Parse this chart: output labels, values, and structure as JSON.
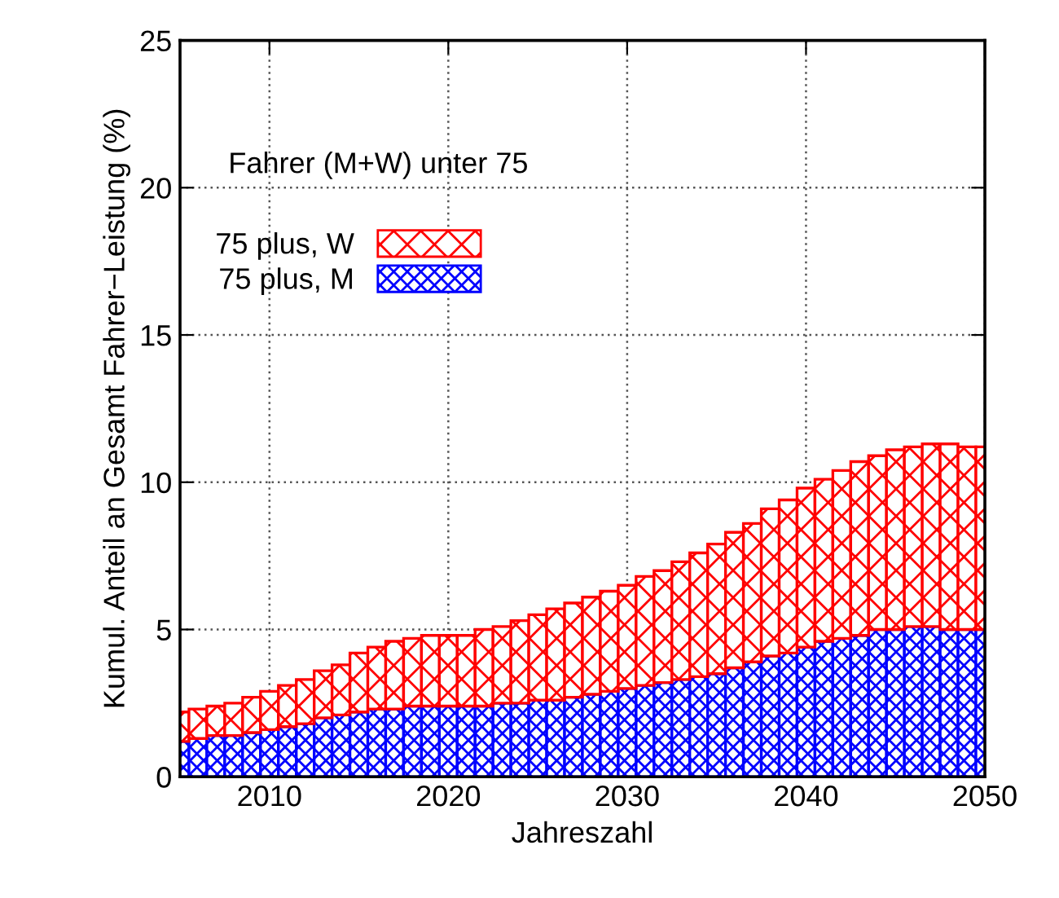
{
  "chart_data": {
    "type": "bar",
    "stacked": true,
    "xlabel": "Jahreszahl",
    "ylabel": "Kumul. Anteil an Gesamt Fahrer−Leistung (%)",
    "x": [
      2005,
      2006,
      2007,
      2008,
      2009,
      2010,
      2011,
      2012,
      2013,
      2014,
      2015,
      2016,
      2017,
      2018,
      2019,
      2020,
      2021,
      2022,
      2023,
      2024,
      2025,
      2026,
      2027,
      2028,
      2029,
      2030,
      2031,
      2032,
      2033,
      2034,
      2035,
      2036,
      2037,
      2038,
      2039,
      2040,
      2041,
      2042,
      2043,
      2044,
      2045,
      2046,
      2047,
      2048,
      2049,
      2050
    ],
    "series": [
      {
        "name": "75 plus, M",
        "color": "#0000ff",
        "values": [
          1.2,
          1.3,
          1.4,
          1.4,
          1.5,
          1.6,
          1.7,
          1.8,
          2.0,
          2.1,
          2.2,
          2.3,
          2.3,
          2.4,
          2.4,
          2.4,
          2.4,
          2.4,
          2.5,
          2.5,
          2.6,
          2.6,
          2.7,
          2.8,
          2.9,
          3.0,
          3.1,
          3.2,
          3.3,
          3.4,
          3.5,
          3.7,
          3.9,
          4.1,
          4.2,
          4.4,
          4.6,
          4.7,
          4.8,
          5.0,
          5.0,
          5.1,
          5.1,
          5.0,
          5.0,
          5.0
        ]
      },
      {
        "name": "75 plus, W",
        "color": "#ff0000",
        "values": [
          1.0,
          1.0,
          1.0,
          1.1,
          1.2,
          1.3,
          1.4,
          1.5,
          1.6,
          1.7,
          2.0,
          2.1,
          2.3,
          2.3,
          2.4,
          2.4,
          2.4,
          2.6,
          2.6,
          2.8,
          2.9,
          3.1,
          3.2,
          3.3,
          3.4,
          3.5,
          3.7,
          3.8,
          4.0,
          4.2,
          4.4,
          4.6,
          4.7,
          5.0,
          5.2,
          5.4,
          5.5,
          5.7,
          5.9,
          5.9,
          6.1,
          6.1,
          6.2,
          6.3,
          6.2,
          6.2
        ]
      }
    ],
    "annotations": [
      "Fahrer (M+W) unter 75"
    ],
    "xlim": [
      2005,
      2050
    ],
    "xticks": [
      2010,
      2020,
      2030,
      2040,
      2050
    ],
    "ylim": [
      0,
      25
    ],
    "yticks": [
      0,
      5,
      10,
      15,
      20,
      25
    ],
    "grid": true,
    "legend": "top left"
  }
}
